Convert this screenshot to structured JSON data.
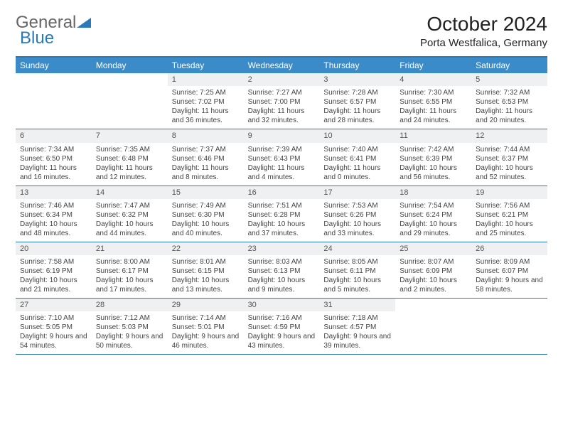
{
  "logo": {
    "part1": "General",
    "part2": "Blue"
  },
  "title": "October 2024",
  "location": "Porta Westfalica, Germany",
  "colors": {
    "header_bg": "#3b8bc9",
    "header_text": "#ffffff",
    "border": "#2a7ab8",
    "date_bar_bg": "#eef0f2",
    "text": "#444444"
  },
  "day_headers": [
    "Sunday",
    "Monday",
    "Tuesday",
    "Wednesday",
    "Thursday",
    "Friday",
    "Saturday"
  ],
  "weeks": [
    [
      {
        "date": "",
        "sunrise": "",
        "sunset": "",
        "daylight": ""
      },
      {
        "date": "",
        "sunrise": "",
        "sunset": "",
        "daylight": ""
      },
      {
        "date": "1",
        "sunrise": "Sunrise: 7:25 AM",
        "sunset": "Sunset: 7:02 PM",
        "daylight": "Daylight: 11 hours and 36 minutes."
      },
      {
        "date": "2",
        "sunrise": "Sunrise: 7:27 AM",
        "sunset": "Sunset: 7:00 PM",
        "daylight": "Daylight: 11 hours and 32 minutes."
      },
      {
        "date": "3",
        "sunrise": "Sunrise: 7:28 AM",
        "sunset": "Sunset: 6:57 PM",
        "daylight": "Daylight: 11 hours and 28 minutes."
      },
      {
        "date": "4",
        "sunrise": "Sunrise: 7:30 AM",
        "sunset": "Sunset: 6:55 PM",
        "daylight": "Daylight: 11 hours and 24 minutes."
      },
      {
        "date": "5",
        "sunrise": "Sunrise: 7:32 AM",
        "sunset": "Sunset: 6:53 PM",
        "daylight": "Daylight: 11 hours and 20 minutes."
      }
    ],
    [
      {
        "date": "6",
        "sunrise": "Sunrise: 7:34 AM",
        "sunset": "Sunset: 6:50 PM",
        "daylight": "Daylight: 11 hours and 16 minutes."
      },
      {
        "date": "7",
        "sunrise": "Sunrise: 7:35 AM",
        "sunset": "Sunset: 6:48 PM",
        "daylight": "Daylight: 11 hours and 12 minutes."
      },
      {
        "date": "8",
        "sunrise": "Sunrise: 7:37 AM",
        "sunset": "Sunset: 6:46 PM",
        "daylight": "Daylight: 11 hours and 8 minutes."
      },
      {
        "date": "9",
        "sunrise": "Sunrise: 7:39 AM",
        "sunset": "Sunset: 6:43 PM",
        "daylight": "Daylight: 11 hours and 4 minutes."
      },
      {
        "date": "10",
        "sunrise": "Sunrise: 7:40 AM",
        "sunset": "Sunset: 6:41 PM",
        "daylight": "Daylight: 11 hours and 0 minutes."
      },
      {
        "date": "11",
        "sunrise": "Sunrise: 7:42 AM",
        "sunset": "Sunset: 6:39 PM",
        "daylight": "Daylight: 10 hours and 56 minutes."
      },
      {
        "date": "12",
        "sunrise": "Sunrise: 7:44 AM",
        "sunset": "Sunset: 6:37 PM",
        "daylight": "Daylight: 10 hours and 52 minutes."
      }
    ],
    [
      {
        "date": "13",
        "sunrise": "Sunrise: 7:46 AM",
        "sunset": "Sunset: 6:34 PM",
        "daylight": "Daylight: 10 hours and 48 minutes."
      },
      {
        "date": "14",
        "sunrise": "Sunrise: 7:47 AM",
        "sunset": "Sunset: 6:32 PM",
        "daylight": "Daylight: 10 hours and 44 minutes."
      },
      {
        "date": "15",
        "sunrise": "Sunrise: 7:49 AM",
        "sunset": "Sunset: 6:30 PM",
        "daylight": "Daylight: 10 hours and 40 minutes."
      },
      {
        "date": "16",
        "sunrise": "Sunrise: 7:51 AM",
        "sunset": "Sunset: 6:28 PM",
        "daylight": "Daylight: 10 hours and 37 minutes."
      },
      {
        "date": "17",
        "sunrise": "Sunrise: 7:53 AM",
        "sunset": "Sunset: 6:26 PM",
        "daylight": "Daylight: 10 hours and 33 minutes."
      },
      {
        "date": "18",
        "sunrise": "Sunrise: 7:54 AM",
        "sunset": "Sunset: 6:24 PM",
        "daylight": "Daylight: 10 hours and 29 minutes."
      },
      {
        "date": "19",
        "sunrise": "Sunrise: 7:56 AM",
        "sunset": "Sunset: 6:21 PM",
        "daylight": "Daylight: 10 hours and 25 minutes."
      }
    ],
    [
      {
        "date": "20",
        "sunrise": "Sunrise: 7:58 AM",
        "sunset": "Sunset: 6:19 PM",
        "daylight": "Daylight: 10 hours and 21 minutes."
      },
      {
        "date": "21",
        "sunrise": "Sunrise: 8:00 AM",
        "sunset": "Sunset: 6:17 PM",
        "daylight": "Daylight: 10 hours and 17 minutes."
      },
      {
        "date": "22",
        "sunrise": "Sunrise: 8:01 AM",
        "sunset": "Sunset: 6:15 PM",
        "daylight": "Daylight: 10 hours and 13 minutes."
      },
      {
        "date": "23",
        "sunrise": "Sunrise: 8:03 AM",
        "sunset": "Sunset: 6:13 PM",
        "daylight": "Daylight: 10 hours and 9 minutes."
      },
      {
        "date": "24",
        "sunrise": "Sunrise: 8:05 AM",
        "sunset": "Sunset: 6:11 PM",
        "daylight": "Daylight: 10 hours and 5 minutes."
      },
      {
        "date": "25",
        "sunrise": "Sunrise: 8:07 AM",
        "sunset": "Sunset: 6:09 PM",
        "daylight": "Daylight: 10 hours and 2 minutes."
      },
      {
        "date": "26",
        "sunrise": "Sunrise: 8:09 AM",
        "sunset": "Sunset: 6:07 PM",
        "daylight": "Daylight: 9 hours and 58 minutes."
      }
    ],
    [
      {
        "date": "27",
        "sunrise": "Sunrise: 7:10 AM",
        "sunset": "Sunset: 5:05 PM",
        "daylight": "Daylight: 9 hours and 54 minutes."
      },
      {
        "date": "28",
        "sunrise": "Sunrise: 7:12 AM",
        "sunset": "Sunset: 5:03 PM",
        "daylight": "Daylight: 9 hours and 50 minutes."
      },
      {
        "date": "29",
        "sunrise": "Sunrise: 7:14 AM",
        "sunset": "Sunset: 5:01 PM",
        "daylight": "Daylight: 9 hours and 46 minutes."
      },
      {
        "date": "30",
        "sunrise": "Sunrise: 7:16 AM",
        "sunset": "Sunset: 4:59 PM",
        "daylight": "Daylight: 9 hours and 43 minutes."
      },
      {
        "date": "31",
        "sunrise": "Sunrise: 7:18 AM",
        "sunset": "Sunset: 4:57 PM",
        "daylight": "Daylight: 9 hours and 39 minutes."
      },
      {
        "date": "",
        "sunrise": "",
        "sunset": "",
        "daylight": ""
      },
      {
        "date": "",
        "sunrise": "",
        "sunset": "",
        "daylight": ""
      }
    ]
  ]
}
